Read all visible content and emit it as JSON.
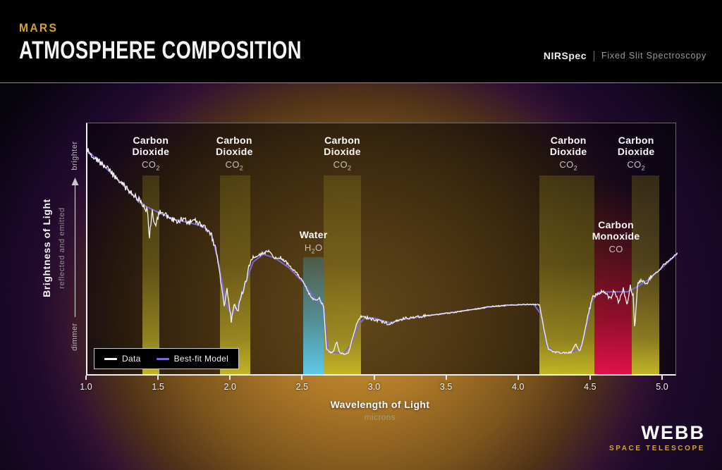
{
  "header": {
    "kicker": "MARS",
    "title": "ATMOSPHERE COMPOSITION",
    "instrument": "NIRSpec",
    "mode": "Fixed Slit Spectroscopy"
  },
  "y_axis": {
    "label": "Brightness of Light",
    "sublabel": "reflected and emitted",
    "top_label": "brighter",
    "bottom_label": "dimmer"
  },
  "x_axis": {
    "label": "Wavelength of Light",
    "sublabel": "microns",
    "ticks": [
      "1.0",
      "1.5",
      "2.0",
      "2.5",
      "3.0",
      "3.5",
      "4.0",
      "4.5",
      "5.0"
    ]
  },
  "footer": {
    "logo": "WEBB",
    "sublogo": "SPACE TELESCOPE"
  },
  "colors": {
    "accent_gold": "#d2a42e",
    "data_line": "#f2f2f2",
    "model_line": "#7a68dc",
    "co2_band": "#c2b525",
    "h2o_band": "#5fc9e9",
    "co_band": "#e01248"
  },
  "chart_data": {
    "type": "line",
    "title": "Mars Atmosphere Composition (NIRSpec Fixed Slit Spectroscopy)",
    "xlabel": "Wavelength of Light (microns)",
    "ylabel": "Brightness of Light, reflected and emitted (relative, dimmer to brighter)",
    "xlim": [
      1.0,
      5.1
    ],
    "ylim": [
      0,
      1
    ],
    "grid": false,
    "legend_position": "lower-left",
    "series": [
      {
        "name": "Data",
        "color": "#f2f2f2",
        "points": [
          [
            1.0,
            0.892
          ],
          [
            1.03,
            0.875
          ],
          [
            1.06,
            0.858
          ],
          [
            1.1,
            0.836
          ],
          [
            1.13,
            0.822
          ],
          [
            1.16,
            0.806
          ],
          [
            1.2,
            0.781
          ],
          [
            1.24,
            0.758
          ],
          [
            1.28,
            0.736
          ],
          [
            1.32,
            0.717
          ],
          [
            1.36,
            0.694
          ],
          [
            1.4,
            0.669
          ],
          [
            1.42,
            0.64
          ],
          [
            1.43,
            0.544
          ],
          [
            1.45,
            0.653
          ],
          [
            1.47,
            0.592
          ],
          [
            1.5,
            0.647
          ],
          [
            1.54,
            0.636
          ],
          [
            1.58,
            0.619
          ],
          [
            1.62,
            0.611
          ],
          [
            1.66,
            0.622
          ],
          [
            1.7,
            0.603
          ],
          [
            1.74,
            0.614
          ],
          [
            1.78,
            0.597
          ],
          [
            1.82,
            0.583
          ],
          [
            1.86,
            0.558
          ],
          [
            1.9,
            0.478
          ],
          [
            1.93,
            0.361
          ],
          [
            1.95,
            0.286
          ],
          [
            1.97,
            0.342
          ],
          [
            2.0,
            0.217
          ],
          [
            2.02,
            0.3
          ],
          [
            2.04,
            0.244
          ],
          [
            2.07,
            0.322
          ],
          [
            2.1,
            0.369
          ],
          [
            2.13,
            0.453
          ],
          [
            2.17,
            0.472
          ],
          [
            2.22,
            0.486
          ],
          [
            2.26,
            0.492
          ],
          [
            2.3,
            0.464
          ],
          [
            2.34,
            0.469
          ],
          [
            2.38,
            0.45
          ],
          [
            2.42,
            0.425
          ],
          [
            2.46,
            0.403
          ],
          [
            2.5,
            0.369
          ],
          [
            2.54,
            0.325
          ],
          [
            2.58,
            0.297
          ],
          [
            2.61,
            0.308
          ],
          [
            2.64,
            0.275
          ],
          [
            2.66,
            0.106
          ],
          [
            2.68,
            0.094
          ],
          [
            2.71,
            0.097
          ],
          [
            2.73,
            0.139
          ],
          [
            2.75,
            0.094
          ],
          [
            2.78,
            0.089
          ],
          [
            2.81,
            0.092
          ],
          [
            2.84,
            0.147
          ],
          [
            2.87,
            0.208
          ],
          [
            2.9,
            0.236
          ],
          [
            2.94,
            0.231
          ],
          [
            2.98,
            0.225
          ],
          [
            3.02,
            0.219
          ],
          [
            3.06,
            0.214
          ],
          [
            3.1,
            0.203
          ],
          [
            3.14,
            0.219
          ],
          [
            3.18,
            0.225
          ],
          [
            3.25,
            0.231
          ],
          [
            3.32,
            0.236
          ],
          [
            3.4,
            0.242
          ],
          [
            3.48,
            0.247
          ],
          [
            3.56,
            0.253
          ],
          [
            3.64,
            0.261
          ],
          [
            3.72,
            0.267
          ],
          [
            3.8,
            0.275
          ],
          [
            3.88,
            0.278
          ],
          [
            3.96,
            0.281
          ],
          [
            4.04,
            0.283
          ],
          [
            4.1,
            0.283
          ],
          [
            4.14,
            0.281
          ],
          [
            4.17,
            0.186
          ],
          [
            4.2,
            0.106
          ],
          [
            4.24,
            0.096
          ],
          [
            4.28,
            0.093
          ],
          [
            4.32,
            0.092
          ],
          [
            4.36,
            0.094
          ],
          [
            4.39,
            0.128
          ],
          [
            4.42,
            0.096
          ],
          [
            4.45,
            0.167
          ],
          [
            4.48,
            0.253
          ],
          [
            4.51,
            0.311
          ],
          [
            4.54,
            0.325
          ],
          [
            4.57,
            0.336
          ],
          [
            4.6,
            0.328
          ],
          [
            4.63,
            0.303
          ],
          [
            4.66,
            0.342
          ],
          [
            4.69,
            0.289
          ],
          [
            4.72,
            0.347
          ],
          [
            4.75,
            0.281
          ],
          [
            4.77,
            0.356
          ],
          [
            4.79,
            0.317
          ],
          [
            4.8,
            0.183
          ],
          [
            4.82,
            0.369
          ],
          [
            4.85,
            0.378
          ],
          [
            4.88,
            0.361
          ],
          [
            4.91,
            0.392
          ],
          [
            4.94,
            0.403
          ],
          [
            4.97,
            0.417
          ],
          [
            5.0,
            0.439
          ],
          [
            5.04,
            0.456
          ],
          [
            5.08,
            0.478
          ],
          [
            5.1,
            0.486
          ]
        ]
      },
      {
        "name": "Best-fit Model",
        "color": "#7a68dc",
        "points": [
          [
            1.0,
            0.89
          ],
          [
            1.1,
            0.836
          ],
          [
            1.2,
            0.781
          ],
          [
            1.3,
            0.724
          ],
          [
            1.4,
            0.672
          ],
          [
            1.5,
            0.644
          ],
          [
            1.6,
            0.619
          ],
          [
            1.7,
            0.606
          ],
          [
            1.8,
            0.592
          ],
          [
            1.86,
            0.564
          ],
          [
            1.91,
            0.45
          ],
          [
            1.96,
            0.292
          ],
          [
            2.0,
            0.239
          ],
          [
            2.05,
            0.289
          ],
          [
            2.1,
            0.372
          ],
          [
            2.15,
            0.45
          ],
          [
            2.22,
            0.481
          ],
          [
            2.3,
            0.467
          ],
          [
            2.4,
            0.428
          ],
          [
            2.5,
            0.369
          ],
          [
            2.58,
            0.306
          ],
          [
            2.64,
            0.278
          ],
          [
            2.67,
            0.1
          ],
          [
            2.72,
            0.094
          ],
          [
            2.78,
            0.09
          ],
          [
            2.83,
            0.125
          ],
          [
            2.88,
            0.2
          ],
          [
            2.93,
            0.233
          ],
          [
            3.0,
            0.228
          ],
          [
            3.1,
            0.211
          ],
          [
            3.2,
            0.225
          ],
          [
            3.35,
            0.238
          ],
          [
            3.5,
            0.25
          ],
          [
            3.65,
            0.261
          ],
          [
            3.8,
            0.274
          ],
          [
            3.95,
            0.281
          ],
          [
            4.1,
            0.283
          ],
          [
            4.15,
            0.244
          ],
          [
            4.19,
            0.119
          ],
          [
            4.24,
            0.097
          ],
          [
            4.3,
            0.092
          ],
          [
            4.36,
            0.095
          ],
          [
            4.42,
            0.11
          ],
          [
            4.46,
            0.18
          ],
          [
            4.5,
            0.297
          ],
          [
            4.55,
            0.331
          ],
          [
            4.65,
            0.333
          ],
          [
            4.75,
            0.333
          ],
          [
            4.82,
            0.353
          ],
          [
            4.9,
            0.383
          ],
          [
            5.0,
            0.433
          ],
          [
            5.1,
            0.486
          ]
        ]
      }
    ],
    "absorption_bands": [
      {
        "molecule": "Carbon Dioxide",
        "formula": "CO2",
        "range_microns": [
          1.38,
          1.5
        ],
        "label_micron": 1.44,
        "band_color": "#c2b525"
      },
      {
        "molecule": "Carbon Dioxide",
        "formula": "CO2",
        "range_microns": [
          1.92,
          2.13
        ],
        "label_micron": 2.02,
        "band_color": "#c2b525"
      },
      {
        "molecule": "Water",
        "formula": "H2O",
        "range_microns": [
          2.5,
          2.64
        ],
        "label_micron": 2.57,
        "band_color": "#5fc9e9"
      },
      {
        "molecule": "Carbon Dioxide",
        "formula": "CO2",
        "range_microns": [
          2.64,
          2.9
        ],
        "label_micron": 2.77,
        "band_color": "#c2b525"
      },
      {
        "molecule": "Carbon Dioxide",
        "formula": "CO2",
        "range_microns": [
          4.14,
          4.52
        ],
        "label_micron": 4.34,
        "band_color": "#c2b525"
      },
      {
        "molecule": "Carbon Monoxide",
        "formula": "CO",
        "range_microns": [
          4.52,
          4.78
        ],
        "label_micron": 4.67,
        "band_color": "#e01248"
      },
      {
        "molecule": "Carbon Dioxide",
        "formula": "CO2",
        "range_microns": [
          4.78,
          4.97
        ],
        "label_micron": 4.81,
        "band_color": "#c2b525"
      }
    ]
  }
}
